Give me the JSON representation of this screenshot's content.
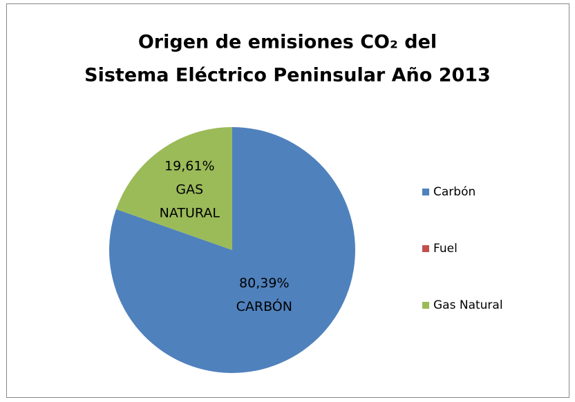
{
  "chart_data": {
    "type": "pie",
    "title_lines": [
      "Origen de emisiones CO₂ del",
      "Sistema Eléctrico Peninsular Año 2013"
    ],
    "categories": [
      "Carbón",
      "Fuel",
      "Gas Natural"
    ],
    "values": [
      80.39,
      0,
      19.61
    ],
    "value_labels": [
      "80,39%",
      null,
      "19,61%"
    ],
    "label_lines": [
      [
        "CARBÓN"
      ],
      null,
      [
        "GAS",
        "NATURAL"
      ]
    ],
    "colors": [
      "#4f81bd",
      "#c0504d",
      "#9bbb59"
    ],
    "legend": "right"
  }
}
